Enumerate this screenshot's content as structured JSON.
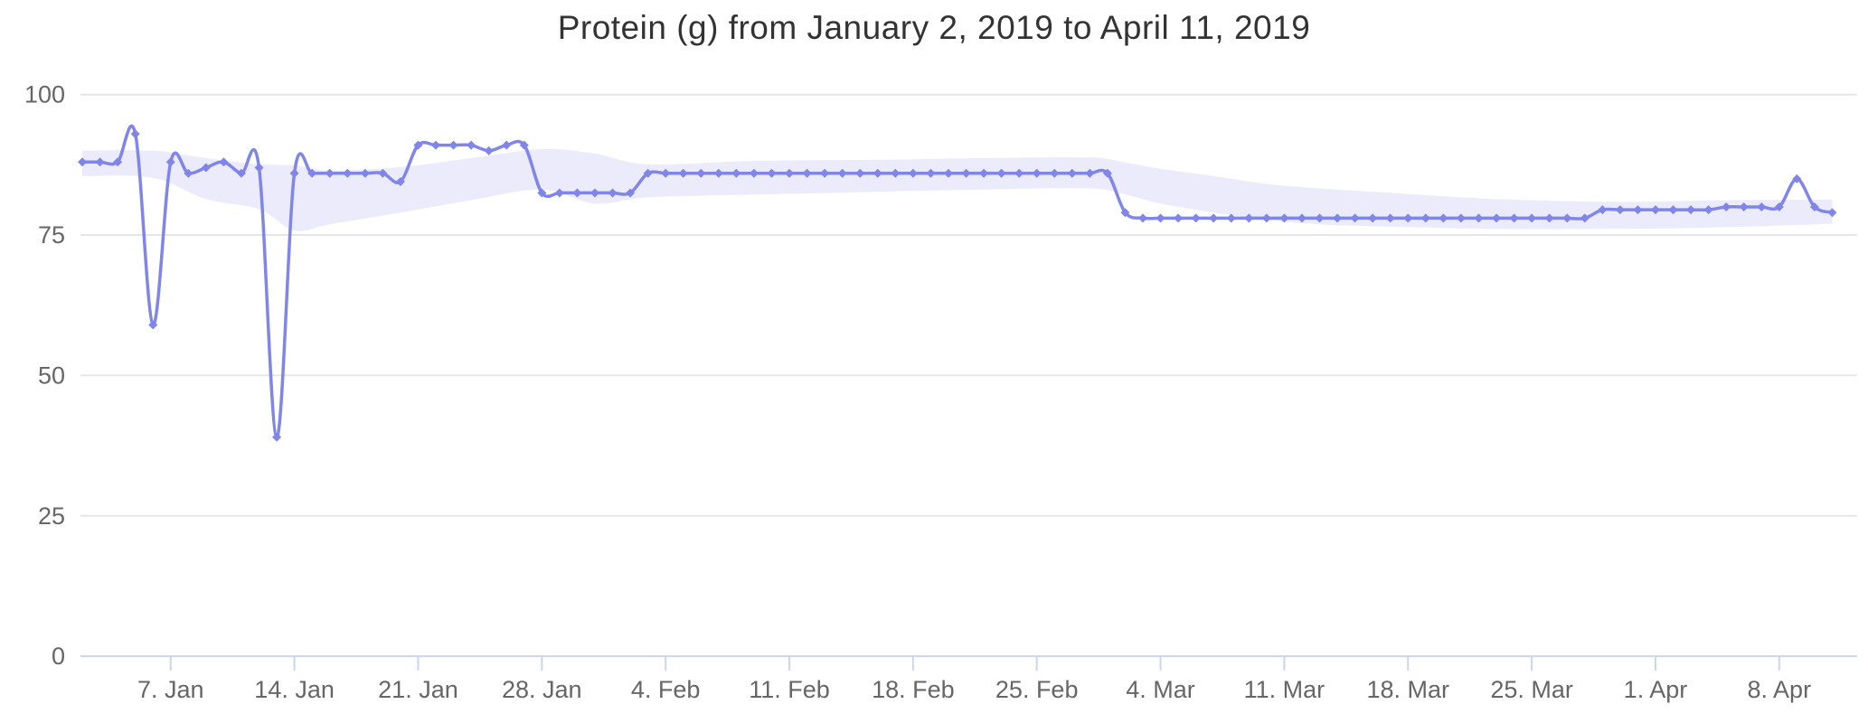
{
  "chart": {
    "title": "Protein (g) from January 2, 2019 to April 11, 2019"
  },
  "chart_data": {
    "type": "line",
    "title": "Protein (g) from January 2, 2019 to April 11, 2019",
    "xlabel": "",
    "ylabel": "",
    "x_start_date": "2019-01-02",
    "x_end_date": "2019-04-11",
    "x_unit": "day",
    "ylim": [
      0,
      100
    ],
    "grid": true,
    "legend": false,
    "y_ticks": [
      {
        "value": 0,
        "label": "0"
      },
      {
        "value": 25,
        "label": "25"
      },
      {
        "value": 50,
        "label": "50"
      },
      {
        "value": 75,
        "label": "75"
      },
      {
        "value": 100,
        "label": "100"
      }
    ],
    "x_ticks": [
      {
        "day": 5,
        "label": "7. Jan"
      },
      {
        "day": 12,
        "label": "14. Jan"
      },
      {
        "day": 19,
        "label": "21. Jan"
      },
      {
        "day": 26,
        "label": "28. Jan"
      },
      {
        "day": 33,
        "label": "4. Feb"
      },
      {
        "day": 40,
        "label": "11. Feb"
      },
      {
        "day": 47,
        "label": "18. Feb"
      },
      {
        "day": 54,
        "label": "25. Feb"
      },
      {
        "day": 61,
        "label": "4. Mar"
      },
      {
        "day": 68,
        "label": "11. Mar"
      },
      {
        "day": 75,
        "label": "18. Mar"
      },
      {
        "day": 82,
        "label": "25. Mar"
      },
      {
        "day": 89,
        "label": "1. Apr"
      },
      {
        "day": 96,
        "label": "8. Apr"
      }
    ],
    "series": [
      {
        "name": "Protein (g)",
        "marker": "diamond",
        "values": [
          88,
          88,
          88,
          93,
          59,
          88,
          86,
          87,
          88,
          86,
          87,
          39,
          86,
          86,
          86,
          86,
          86,
          86,
          84.5,
          91,
          91,
          91,
          91,
          90,
          91,
          91,
          82.5,
          82.5,
          82.5,
          82.5,
          82.5,
          82.5,
          86,
          86,
          86,
          86,
          86,
          86,
          86,
          86,
          86,
          86,
          86,
          86,
          86,
          86,
          86,
          86,
          86,
          86,
          86,
          86,
          86,
          86,
          86,
          86,
          86,
          86,
          86,
          79,
          78,
          78,
          78,
          78,
          78,
          78,
          78,
          78,
          78,
          78,
          78,
          78,
          78,
          78,
          78,
          78,
          78,
          78,
          78,
          78,
          78,
          78,
          78,
          78,
          78,
          78,
          79.5,
          79.5,
          79.5,
          79.5,
          79.5,
          79.5,
          79.5,
          80,
          80,
          80,
          80,
          85,
          80,
          79
        ]
      }
    ],
    "band": {
      "name": "range-band",
      "points": [
        {
          "day": 0,
          "lo": 85.5,
          "hi": 90.0
        },
        {
          "day": 4,
          "lo": 85.2,
          "hi": 90.0
        },
        {
          "day": 7,
          "lo": 81.4,
          "hi": 88.7
        },
        {
          "day": 10,
          "lo": 79.6,
          "hi": 87.6
        },
        {
          "day": 12,
          "lo": 75.8,
          "hi": 87.4
        },
        {
          "day": 14,
          "lo": 76.9,
          "hi": 86.5
        },
        {
          "day": 18,
          "lo": 79.0,
          "hi": 87.1
        },
        {
          "day": 22,
          "lo": 81.2,
          "hi": 88.7
        },
        {
          "day": 26,
          "lo": 83.1,
          "hi": 90.3
        },
        {
          "day": 29,
          "lo": 80.6,
          "hi": 89.5
        },
        {
          "day": 32,
          "lo": 81.7,
          "hi": 87.6
        },
        {
          "day": 38,
          "lo": 82.2,
          "hi": 88.2
        },
        {
          "day": 45,
          "lo": 82.7,
          "hi": 88.4
        },
        {
          "day": 51,
          "lo": 83.1,
          "hi": 88.7
        },
        {
          "day": 57,
          "lo": 83.3,
          "hi": 88.8
        },
        {
          "day": 59,
          "lo": 82.2,
          "hi": 87.9
        },
        {
          "day": 61,
          "lo": 80.6,
          "hi": 86.8
        },
        {
          "day": 64,
          "lo": 79.0,
          "hi": 85.5
        },
        {
          "day": 67,
          "lo": 77.7,
          "hi": 84.1
        },
        {
          "day": 70,
          "lo": 76.9,
          "hi": 83.3
        },
        {
          "day": 74,
          "lo": 76.5,
          "hi": 82.5
        },
        {
          "day": 80,
          "lo": 76.1,
          "hi": 81.4
        },
        {
          "day": 87,
          "lo": 76.1,
          "hi": 80.9
        },
        {
          "day": 93,
          "lo": 76.4,
          "hi": 81.2
        },
        {
          "day": 99,
          "lo": 77.0,
          "hi": 81.3
        }
      ]
    },
    "colors": {
      "line": "#8085e9",
      "marker": "#8085e9",
      "band_fill": "#8085e9",
      "band_opacity": 0.16,
      "gridline": "#e6e6e6",
      "axis_line": "#ccd6eb",
      "tick_mark": "#ccd6eb",
      "axis_label": "#666666",
      "title": "#333333"
    }
  }
}
